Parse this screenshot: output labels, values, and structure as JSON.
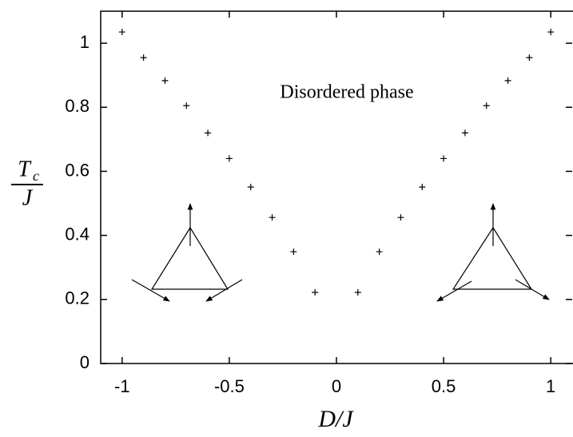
{
  "chart_data": {
    "type": "scatter",
    "xlabel": "D/J",
    "ylabel": {
      "numerator": "T",
      "subscript": "c",
      "denominator": "J"
    },
    "annotation": "Disordered phase",
    "x": [
      -1,
      -0.9,
      -0.8,
      -0.7,
      -0.6,
      -0.5,
      -0.4,
      -0.3,
      -0.2,
      -0.1,
      0.1,
      0.2,
      0.3,
      0.4,
      0.5,
      0.6,
      0.7,
      0.8,
      0.9,
      1
    ],
    "values": [
      1.035,
      0.955,
      0.883,
      0.805,
      0.72,
      0.64,
      0.551,
      0.456,
      0.349,
      0.222,
      0.222,
      0.349,
      0.456,
      0.551,
      0.64,
      0.72,
      0.805,
      0.883,
      0.955,
      1.035
    ],
    "color": "#000000",
    "xlim": [
      -1.1,
      1.1
    ],
    "xticks": [
      -1,
      -0.5,
      0,
      0.5,
      1
    ],
    "ylim": [
      0,
      1.1
    ],
    "yticks": [
      0,
      0.2,
      0.4,
      0.6,
      0.8,
      1
    ],
    "grid": false
  }
}
